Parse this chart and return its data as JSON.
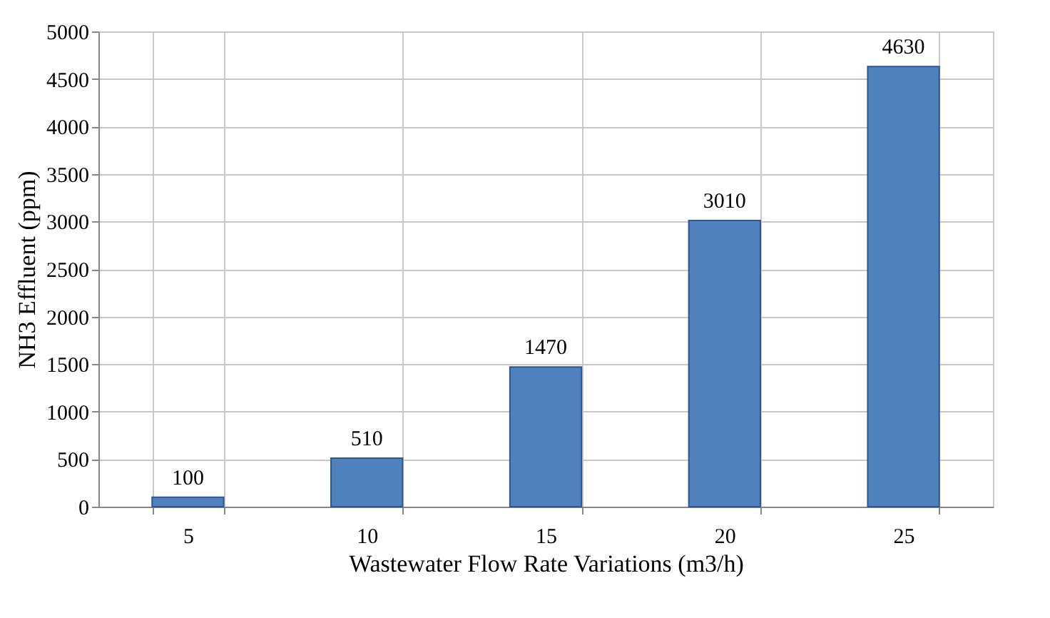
{
  "chart_data": {
    "type": "bar",
    "xlabel": "Wastewater Flow Rate Variations (m3/h)",
    "ylabel": "NH3 Effluent (ppm)",
    "categories": [
      "5",
      "10",
      "15",
      "20",
      "25"
    ],
    "values": [
      100,
      510,
      1470,
      3010,
      4630
    ],
    "color": "#4f81bd",
    "ylim": [
      0,
      5000
    ],
    "yticks": [
      0,
      500,
      1000,
      1500,
      2000,
      2500,
      3000,
      3500,
      4000,
      4500,
      5000
    ],
    "grid": true,
    "data_labels": true
  }
}
